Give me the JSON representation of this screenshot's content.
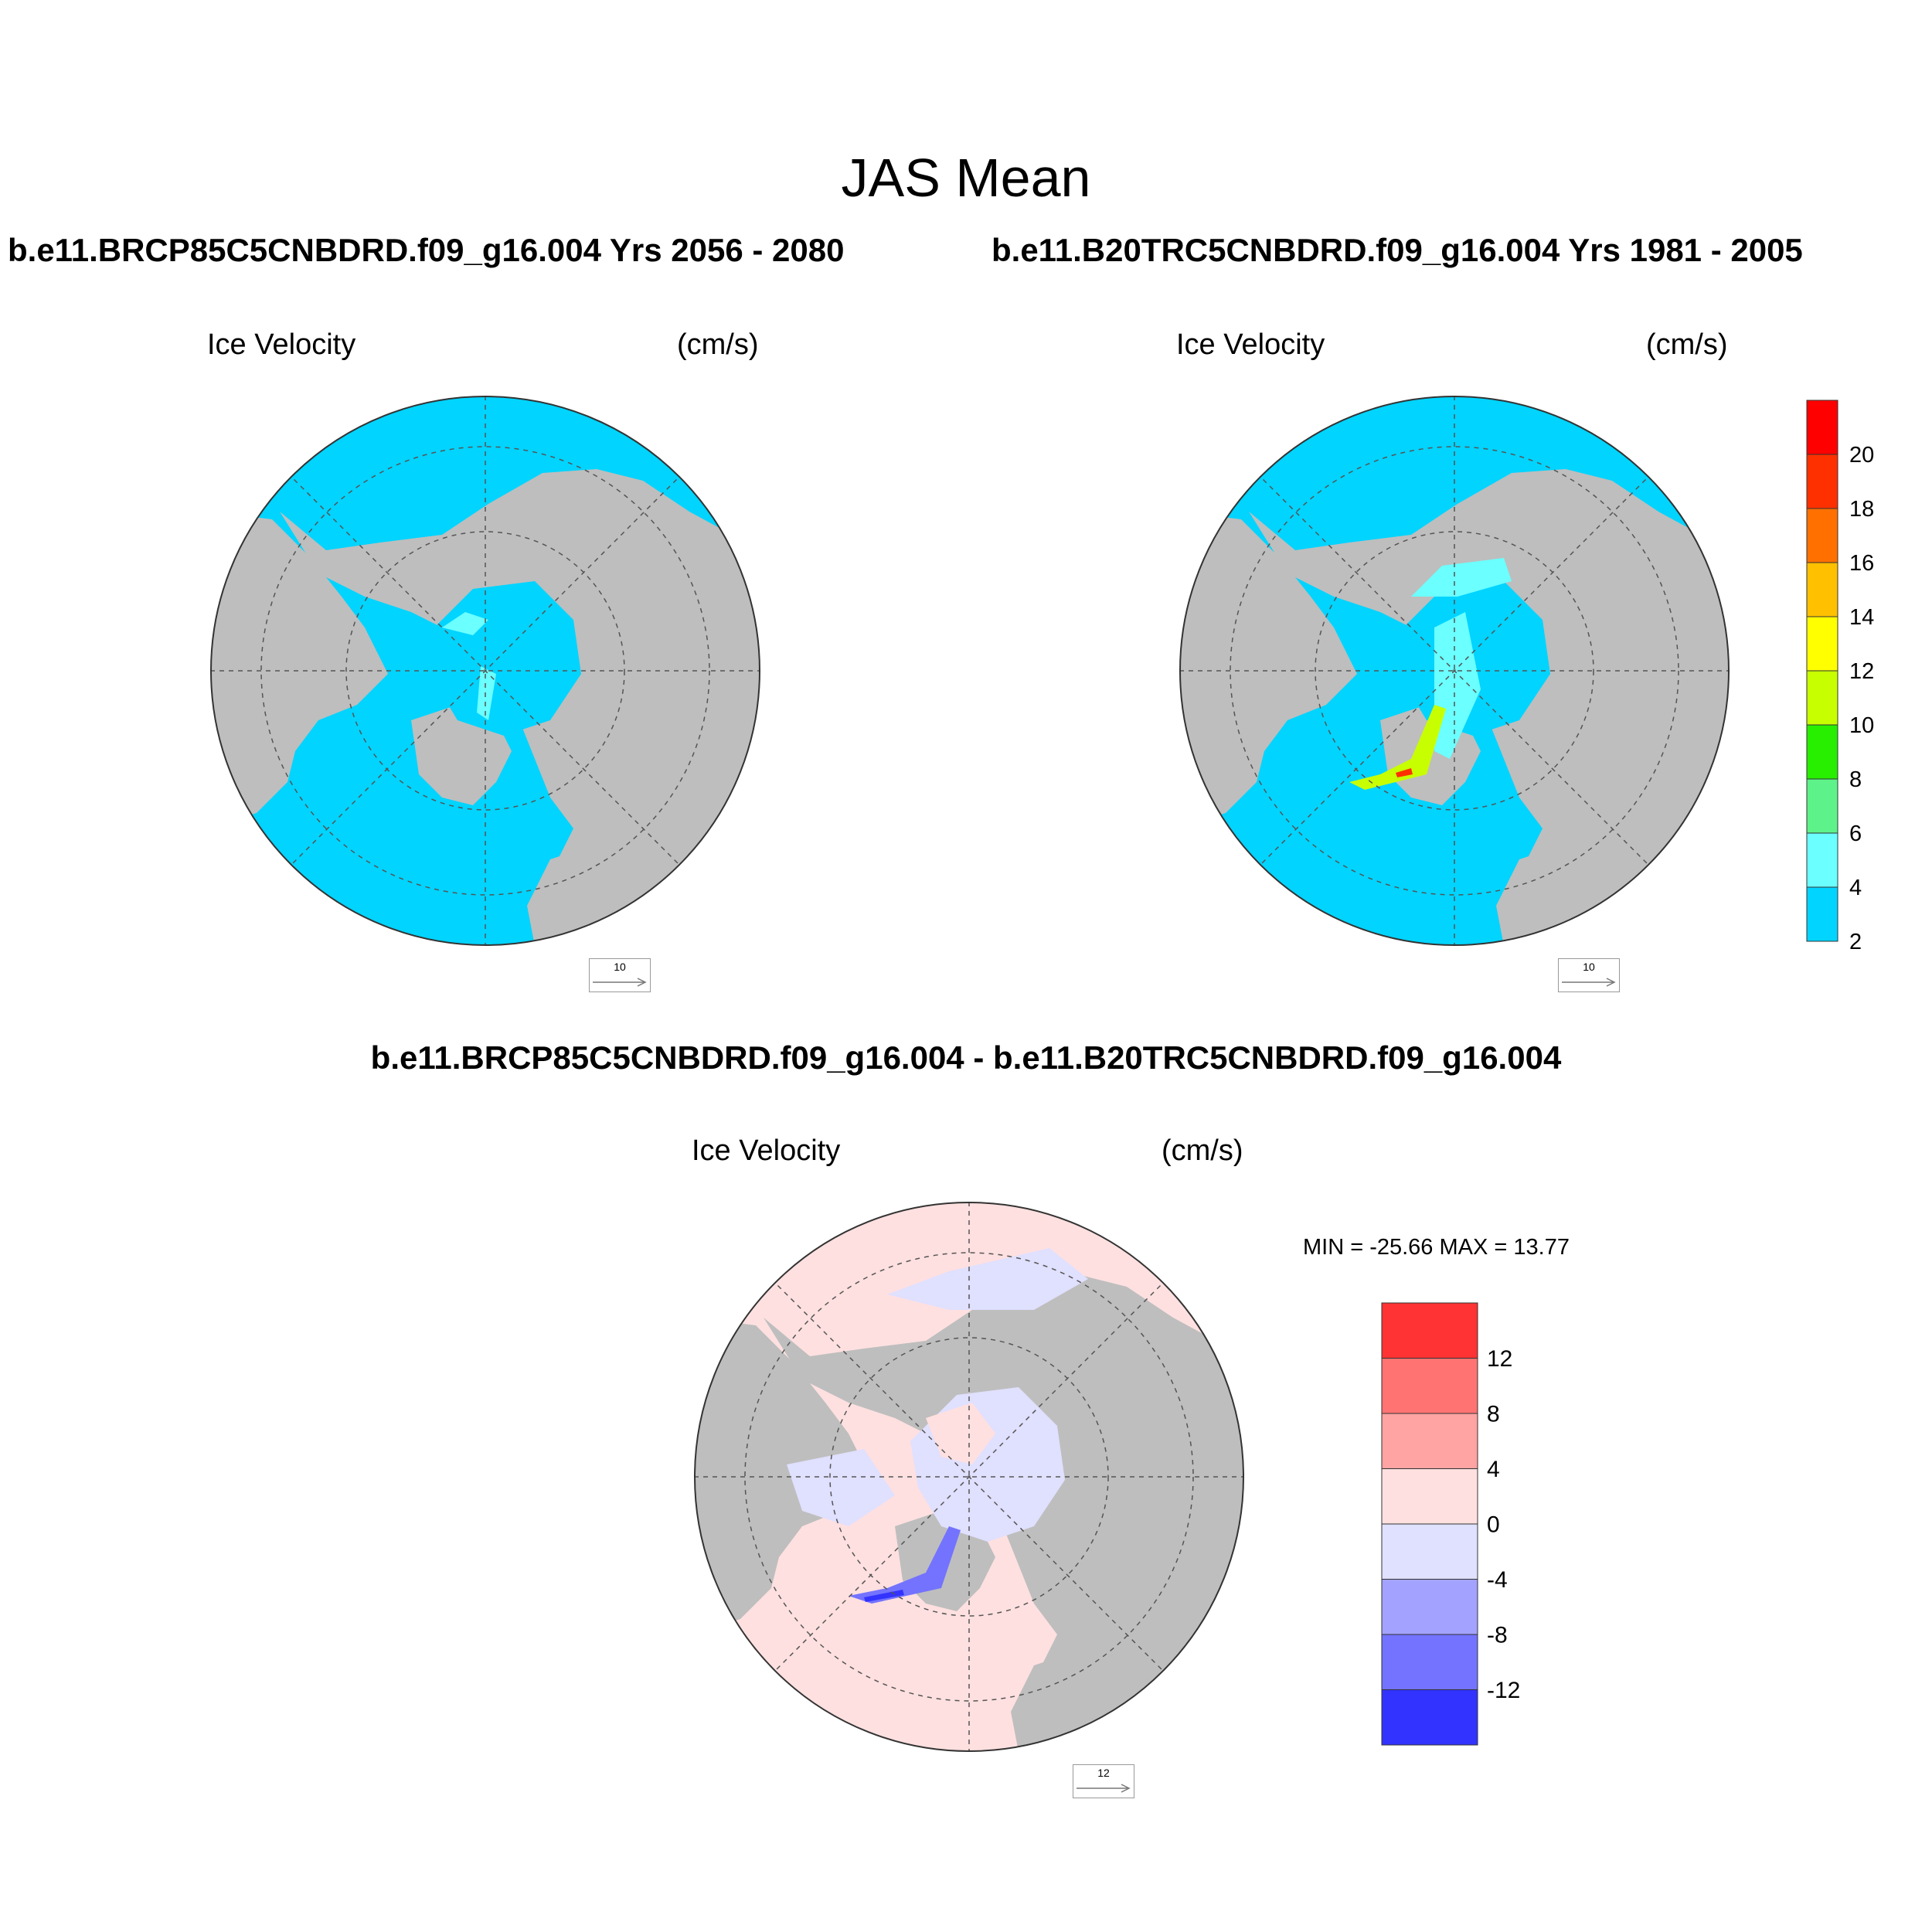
{
  "title": "JAS Mean",
  "panels": [
    {
      "subtitle": "b.e11.BRCP85C5CNBDRD.f09_g16.004  Yrs 2056 - 2080",
      "left_label": "Ice Velocity",
      "right_label": "(cm/s)",
      "ref_vector": "10"
    },
    {
      "subtitle": "b.e11.B20TRC5CNBDRD.f09_g16.004  Yrs 1981 - 2005",
      "left_label": "Ice Velocity",
      "right_label": "(cm/s)",
      "ref_vector": "10"
    },
    {
      "subtitle": "b.e11.BRCP85C5CNBDRD.f09_g16.004 - b.e11.B20TRC5CNBDRD.f09_g16.004",
      "left_label": "Ice Velocity",
      "right_label": "(cm/s)",
      "ref_vector": "12",
      "minmax": "MIN = -25.66 MAX =  13.77"
    }
  ],
  "colorbar_top": {
    "labels": [
      "20",
      "18",
      "16",
      "14",
      "12",
      "10",
      "8",
      "6",
      "4",
      "2"
    ],
    "colors": [
      "#ff0000",
      "#ff3000",
      "#ff7000",
      "#ffc000",
      "#ffff00",
      "#c8ff00",
      "#28ee00",
      "#5ef38a",
      "#6bffff",
      "#00d4ff"
    ]
  },
  "colorbar_diff": {
    "labels": [
      "12",
      "8",
      "4",
      "0",
      "-4",
      "-8",
      "-12"
    ],
    "colors": [
      "#ff3333",
      "#ff7373",
      "#ffa3a3",
      "#ffe0e0",
      "#e0e0ff",
      "#a3a3ff",
      "#7373ff",
      "#3333ff"
    ]
  },
  "map_colors": {
    "land": "#bebebe",
    "ice_low": "#00d4ff",
    "diff_pos": "#ffe0e0",
    "diff_neg": "#e0e0ff"
  }
}
